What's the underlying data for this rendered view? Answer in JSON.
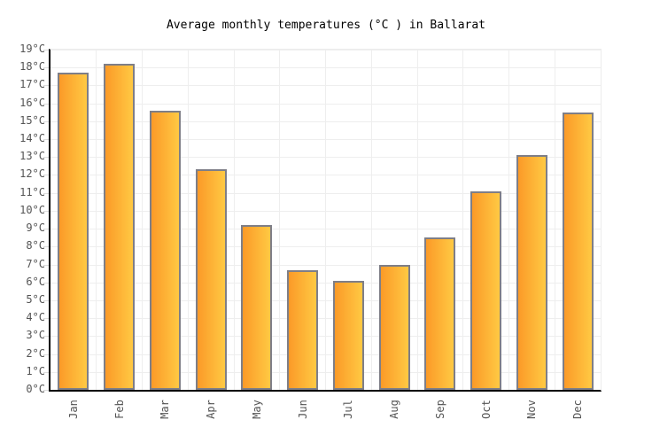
{
  "chart_data": {
    "type": "bar",
    "title": "Average monthly temperatures (°C ) in Ballarat",
    "categories": [
      "Jan",
      "Feb",
      "Mar",
      "Apr",
      "May",
      "Jun",
      "Jul",
      "Aug",
      "Sep",
      "Oct",
      "Nov",
      "Dec"
    ],
    "values": [
      17.7,
      18.2,
      15.6,
      12.3,
      9.2,
      6.7,
      6.1,
      7.0,
      8.5,
      11.1,
      13.1,
      15.5
    ],
    "xlabel": "",
    "ylabel": "",
    "unit": "°C",
    "ylim": [
      0,
      19
    ],
    "ytick_step": 1,
    "ytick_labels": [
      "0°C",
      "1°C",
      "2°C",
      "3°C",
      "4°C",
      "5°C",
      "6°C",
      "7°C",
      "8°C",
      "9°C",
      "10°C",
      "11°C",
      "12°C",
      "13°C",
      "14°C",
      "15°C",
      "16°C",
      "17°C",
      "18°C",
      "19°C"
    ],
    "x_tick_rotation": -90,
    "grid": true,
    "legend": "none"
  },
  "colors": {
    "background": "#FFFFFF",
    "bar_gradient_left": "#FB9A28",
    "bar_gradient_right": "#FFC943",
    "bar_border": "#7E7E87",
    "axis_line": "#000000",
    "gridline": "#EEEEEE",
    "tick_mark": "#DDDDDD",
    "tick_text": "#545454",
    "title_text": "#000000"
  }
}
